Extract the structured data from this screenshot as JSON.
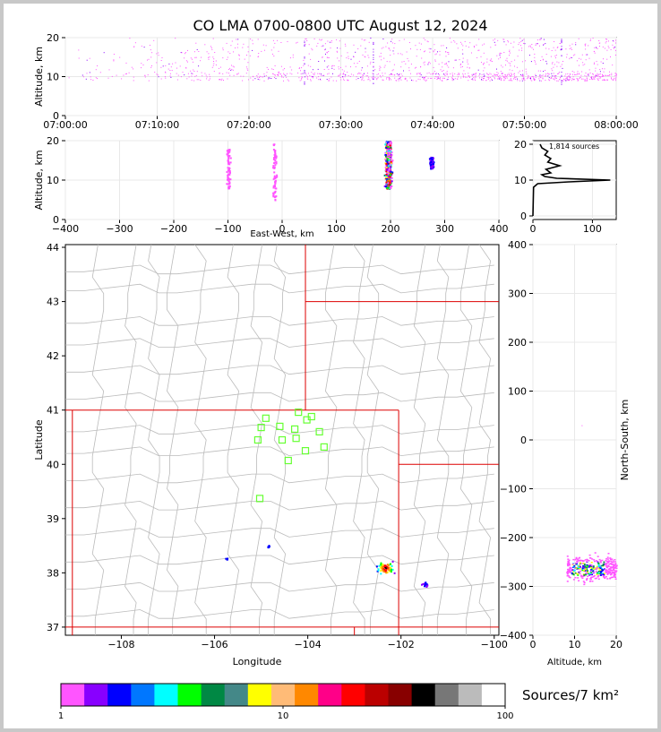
{
  "title": "CO LMA 0700-0800 UTC August 12, 2024",
  "colors": {
    "axis": "#000000",
    "grid": "#e8e8e8",
    "county": "#bbbbbb",
    "state": "#dd0000",
    "station": "#66ff33",
    "density": "#ff55ff",
    "profile": "#000000"
  },
  "chart_data": [
    {
      "type": "scatter",
      "name": "time-height",
      "xlabel": "",
      "ylabel": "Altitude, km",
      "xlim": [
        "07:00:00",
        "08:00:00"
      ],
      "ylim": [
        0,
        20
      ],
      "xticks": [
        "07:00:00",
        "07:10:00",
        "07:20:00",
        "07:30:00",
        "07:40:00",
        "07:50:00",
        "08:00:00"
      ],
      "yticks": [
        0,
        10,
        20
      ]
    },
    {
      "type": "scatter",
      "name": "east-west-altitude",
      "xlabel": "East-West, km",
      "ylabel": "Altitude, km",
      "xlim": [
        -400,
        400
      ],
      "ylim": [
        0,
        20
      ],
      "xticks": [
        -400,
        -300,
        -200,
        -100,
        0,
        100,
        200,
        300,
        400
      ],
      "yticks": [
        0,
        10,
        20
      ],
      "clusters": [
        {
          "x": -100,
          "ymin": 8,
          "ymax": 18
        },
        {
          "x": -15,
          "ymin": 5,
          "ymax": 20
        },
        {
          "x": 195,
          "ymin": 8,
          "ymax": 20
        },
        {
          "x": 275,
          "ymin": 13,
          "ymax": 16
        }
      ]
    },
    {
      "type": "line",
      "name": "altitude-histogram",
      "annotation": "1,814 sources",
      "xlim": [
        0,
        140
      ],
      "ylim": [
        -1,
        21
      ],
      "xticks": [
        0,
        100
      ],
      "yticks": [
        0,
        10,
        20
      ],
      "profile": [
        [
          0,
          0
        ],
        [
          1,
          8
        ],
        [
          8,
          9
        ],
        [
          60,
          9.5
        ],
        [
          130,
          10
        ],
        [
          40,
          10.5
        ],
        [
          20,
          11
        ],
        [
          15,
          11.5
        ],
        [
          30,
          12
        ],
        [
          22,
          13
        ],
        [
          45,
          14
        ],
        [
          25,
          15
        ],
        [
          30,
          16
        ],
        [
          20,
          17
        ],
        [
          25,
          18
        ],
        [
          15,
          19
        ],
        [
          12,
          20
        ]
      ]
    },
    {
      "type": "scatter",
      "name": "plan-view",
      "xlabel": "Longitude",
      "ylabel": "Latitude",
      "xlim": [
        -109.2,
        -99.9
      ],
      "ylim": [
        36.85,
        44.05
      ],
      "xticks": [
        -108,
        -106,
        -104,
        -102,
        -100
      ],
      "yticks": [
        37,
        38,
        39,
        40,
        41,
        42,
        43,
        44
      ],
      "stations": [
        [
          -104.9,
          40.85
        ],
        [
          -104.2,
          40.96
        ],
        [
          -103.92,
          40.88
        ],
        [
          -104.02,
          40.82
        ],
        [
          -104.6,
          40.7
        ],
        [
          -105.0,
          40.68
        ],
        [
          -104.28,
          40.65
        ],
        [
          -103.75,
          40.6
        ],
        [
          -104.55,
          40.45
        ],
        [
          -104.25,
          40.48
        ],
        [
          -105.07,
          40.45
        ],
        [
          -103.65,
          40.32
        ],
        [
          -104.05,
          40.25
        ],
        [
          -104.42,
          40.07
        ],
        [
          -105.03,
          39.37
        ]
      ],
      "clusters": [
        {
          "lon": -102.35,
          "lat": 38.1,
          "spread": 0.25,
          "count": 70
        },
        {
          "lon": -101.5,
          "lat": 37.8,
          "spread": 0.12,
          "count": 15
        },
        {
          "lon": -105.75,
          "lat": 38.27,
          "spread": 0.05,
          "count": 6
        },
        {
          "lon": -104.85,
          "lat": 38.5,
          "spread": 0.05,
          "count": 5
        }
      ]
    },
    {
      "type": "scatter",
      "name": "altitude-north-south",
      "xlabel": "Altitude, km",
      "ylabel": "North-South, km",
      "xlim": [
        0,
        20
      ],
      "ylim": [
        -400,
        400
      ],
      "xticks": [
        0,
        10,
        20
      ],
      "yticks": [
        -400,
        -300,
        -200,
        -100,
        0,
        100,
        200,
        300,
        400
      ],
      "cluster": {
        "xmin": 8,
        "xmax": 20,
        "ymin": -300,
        "ymax": -215
      }
    },
    {
      "type": "colorbar",
      "name": "density-scale",
      "label": "Sources/7 km²",
      "scale": "log",
      "ticks": [
        "1",
        "10",
        "100"
      ],
      "colors": [
        "#ff55ff",
        "#8800ff",
        "#0000ff",
        "#0077ff",
        "#00ffff",
        "#00ff00",
        "#008844",
        "#448888",
        "#ffff00",
        "#ffbb77",
        "#ff8800",
        "#ff0088",
        "#ff0000",
        "#bb0000",
        "#880000",
        "#000000",
        "#777777",
        "#bbbbbb",
        "#ffffff"
      ]
    }
  ]
}
